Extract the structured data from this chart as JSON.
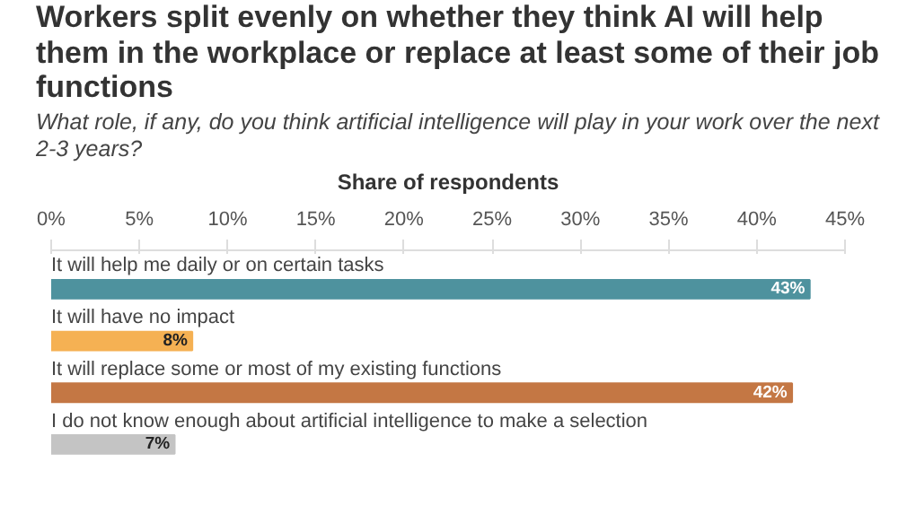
{
  "chart_data": {
    "type": "bar",
    "orientation": "horizontal",
    "title": "Workers split evenly on whether they think AI will help them in the workplace or replace at least some of their job functions",
    "subtitle": "What role, if any, do you think artificial intelligence will play in your work over the next 2-3 years?",
    "xlabel": "Share of respondents",
    "categories": [
      "It will help me daily or on certain tasks",
      "It will have no impact",
      "It will replace some or most of my existing functions",
      "I do not know enough about artificial intelligence to make a selection"
    ],
    "values": [
      43,
      8,
      42,
      7
    ],
    "colors": [
      "#4e929e",
      "#f5b153",
      "#c47744",
      "#c4c4c4"
    ],
    "value_labels": [
      "43%",
      "8%",
      "42%",
      "7%"
    ],
    "xlim": [
      0,
      45
    ],
    "xticks": [
      {
        "value": 0,
        "label": "0%"
      },
      {
        "value": 5,
        "label": "5%"
      },
      {
        "value": 10,
        "label": "10%"
      },
      {
        "value": 15,
        "label": "15%"
      },
      {
        "value": 20,
        "label": "20%"
      },
      {
        "value": 25,
        "label": "25%"
      },
      {
        "value": 30,
        "label": "30%"
      },
      {
        "value": 35,
        "label": "35%"
      },
      {
        "value": 40,
        "label": "40%"
      },
      {
        "value": 45,
        "label": "45%"
      }
    ],
    "grid": false
  }
}
